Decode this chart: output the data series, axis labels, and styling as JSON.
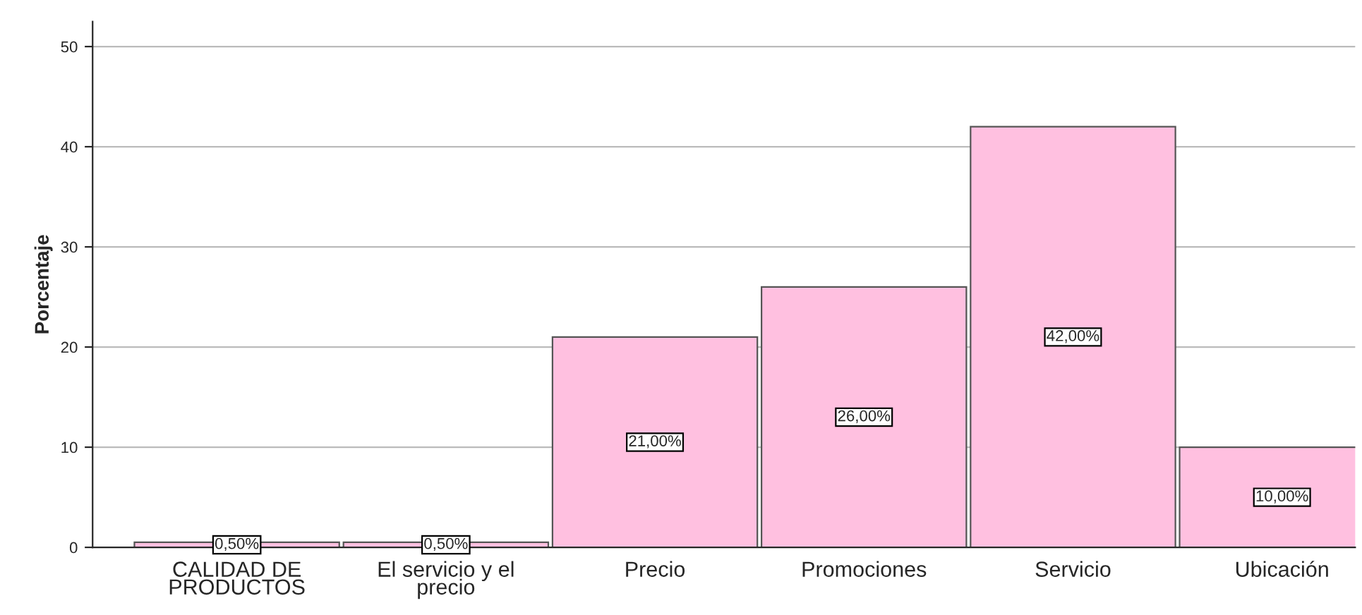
{
  "chart_data": {
    "type": "bar",
    "ylabel": "Porcentaje",
    "categories": [
      "CALIDAD DE\nPRODUCTOS",
      "El servicio y el\nprecio",
      "Precio",
      "Promociones",
      "Servicio",
      "Ubicación"
    ],
    "values": [
      0.5,
      0.5,
      21,
      26,
      42,
      10
    ],
    "value_labels": [
      "0,50%",
      "0,50%",
      "21,00%",
      "26,00%",
      "42,00%",
      "10,00%"
    ],
    "color": "#ffc0e0",
    "ylim": [
      0,
      52.5
    ],
    "yticks": [
      0,
      10,
      20,
      30,
      40,
      50
    ],
    "grid": "y",
    "legend": false
  }
}
